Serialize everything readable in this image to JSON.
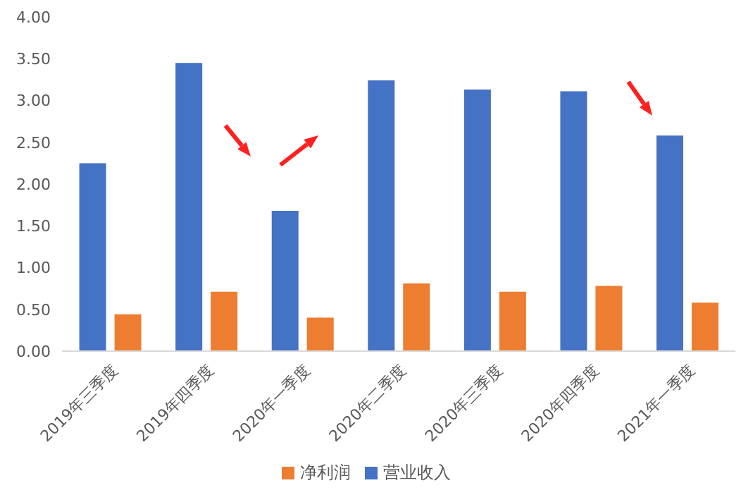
{
  "chart_data": {
    "type": "bar",
    "categories": [
      "2019年三季度",
      "2019年四季度",
      "2020年一季度",
      "2020年二季度",
      "2020年三季度",
      "2020年四季度",
      "2021年一季度"
    ],
    "series": [
      {
        "name": "营业收入",
        "color": "#4472c4",
        "values": [
          2.25,
          3.45,
          1.68,
          3.24,
          3.13,
          3.11,
          2.58
        ]
      },
      {
        "name": "净利润",
        "color": "#ed7d31",
        "values": [
          0.44,
          0.71,
          0.4,
          0.81,
          0.71,
          0.78,
          0.58
        ]
      }
    ],
    "ylim": [
      0,
      4
    ],
    "yticks": [
      {
        "value": 0,
        "label": "0.00"
      },
      {
        "value": 0.5,
        "label": "0.50"
      },
      {
        "value": 1,
        "label": "1.00"
      },
      {
        "value": 1.5,
        "label": "1.50"
      },
      {
        "value": 2,
        "label": "2.00"
      },
      {
        "value": 2.5,
        "label": "2.50"
      },
      {
        "value": 3,
        "label": "3.00"
      },
      {
        "value": 3.5,
        "label": "3.50"
      },
      {
        "value": 4,
        "label": "4.00"
      }
    ],
    "grid": false,
    "legend": "bottom"
  }
}
